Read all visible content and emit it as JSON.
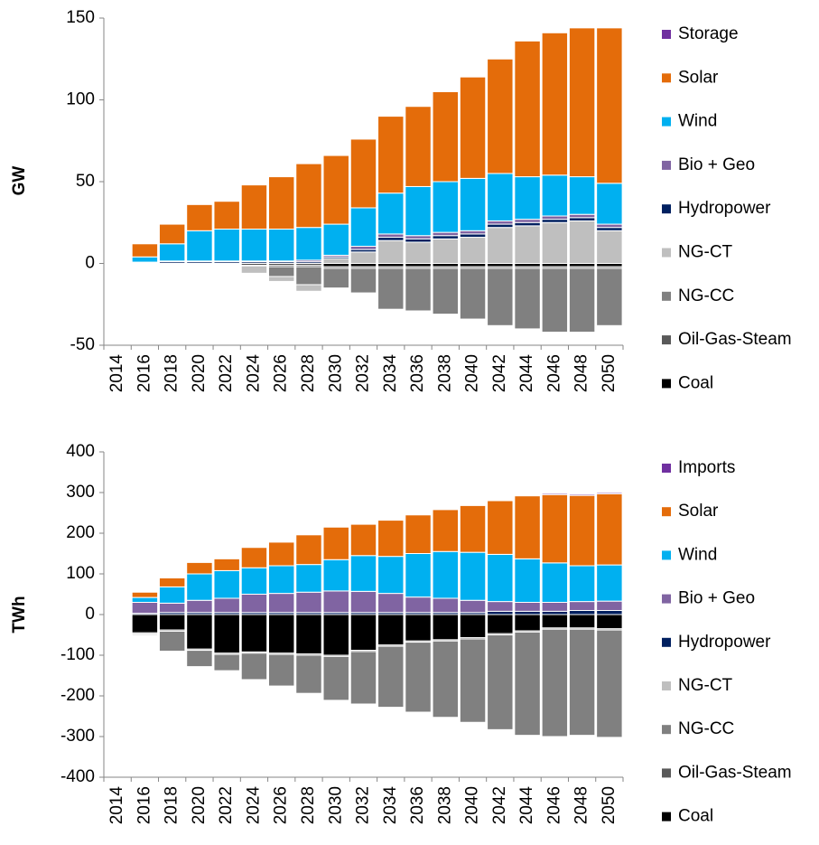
{
  "chart_data": [
    {
      "type": "stacked_bar",
      "y_label": "GW",
      "categories": [
        "2014",
        "2016",
        "2018",
        "2020",
        "2022",
        "2024",
        "2026",
        "2028",
        "2030",
        "2032",
        "2034",
        "2036",
        "2038",
        "2040",
        "2042",
        "2044",
        "2046",
        "2048",
        "2050"
      ],
      "ylim": [
        -50,
        150
      ],
      "yticks": [
        -50,
        0,
        50,
        100,
        150
      ],
      "grid": false,
      "series": [
        {
          "name": "Storage",
          "color": "#7030a0",
          "values": [
            0,
            0,
            0,
            0,
            0,
            0,
            0,
            0,
            0,
            0,
            0,
            0,
            0,
            0,
            0,
            0,
            0,
            0,
            0
          ]
        },
        {
          "name": "Solar",
          "color": "#e46c0a",
          "values": [
            0,
            8,
            12,
            16,
            17,
            27,
            32,
            39,
            42,
            42,
            47,
            49,
            55,
            62,
            70,
            83,
            87,
            91,
            95
          ]
        },
        {
          "name": "Wind",
          "color": "#00b0f0",
          "values": [
            0,
            3.2,
            10.5,
            18.5,
            19.5,
            19.5,
            19.5,
            20,
            19,
            23.5,
            25,
            30,
            31,
            32,
            29,
            26,
            25,
            23,
            25
          ]
        },
        {
          "name": "Bio + Geo",
          "color": "#8064a2",
          "values": [
            0,
            0.3,
            0.5,
            0.5,
            0.5,
            0.5,
            0.5,
            1,
            1,
            2,
            2,
            2,
            2,
            2,
            2,
            2,
            2,
            2,
            2
          ]
        },
        {
          "name": "Hydropower",
          "color": "#002060",
          "values": [
            0,
            0.5,
            1,
            1,
            1,
            1,
            1,
            1,
            1,
            1.5,
            2,
            2,
            2,
            2,
            2,
            2,
            2,
            2,
            2
          ]
        },
        {
          "name": "NG-CT",
          "color": "#bfbfbf",
          "values": [
            0,
            0,
            0,
            0,
            0,
            -4.5,
            -3,
            -4,
            3,
            7,
            14,
            13,
            15,
            16,
            22,
            23,
            25,
            26,
            20
          ]
        },
        {
          "name": "NG-CC",
          "color": "#808080",
          "values": [
            0,
            0,
            0,
            0,
            0,
            0,
            -6,
            -11,
            -12,
            -15,
            -25,
            -26,
            -28,
            -31,
            -35,
            -37,
            -39,
            -39,
            -35
          ]
        },
        {
          "name": "Oil-Gas-Steam",
          "color": "#595959",
          "values": [
            0,
            0,
            0,
            0,
            0,
            -0.5,
            -1,
            -1,
            -1,
            -1,
            -1,
            -1,
            -1,
            -1,
            -1,
            -1,
            -1,
            -1,
            -1
          ]
        },
        {
          "name": "Coal",
          "color": "#000000",
          "values": [
            0,
            0,
            0,
            0,
            0,
            -1,
            -1,
            -1,
            -2,
            -2,
            -2,
            -2,
            -2,
            -2,
            -2,
            -2,
            -2,
            -2,
            -2
          ]
        }
      ]
    },
    {
      "type": "stacked_bar",
      "y_label": "TWh",
      "categories": [
        "2014",
        "2016",
        "2018",
        "2020",
        "2022",
        "2024",
        "2026",
        "2028",
        "2030",
        "2032",
        "2034",
        "2036",
        "2038",
        "2040",
        "2042",
        "2044",
        "2046",
        "2048",
        "2050"
      ],
      "ylim": [
        -400,
        400
      ],
      "yticks": [
        -400,
        -300,
        -200,
        -100,
        0,
        100,
        200,
        300,
        400
      ],
      "grid": false,
      "series": [
        {
          "name": "Imports",
          "color": "#7030a0",
          "values": [
            0,
            0,
            0,
            0,
            0,
            0,
            0,
            0,
            0,
            0,
            0,
            0,
            0,
            0,
            0,
            2,
            3,
            3,
            3
          ]
        },
        {
          "name": "Solar",
          "color": "#e46c0a",
          "values": [
            0,
            13,
            22,
            28,
            29,
            50,
            58,
            73,
            80,
            77,
            89,
            95,
            103,
            115,
            132,
            155,
            168,
            173,
            175
          ]
        },
        {
          "name": "Wind",
          "color": "#00b0f0",
          "values": [
            0,
            12,
            40,
            65,
            68,
            65,
            68,
            68,
            77,
            88,
            91,
            107,
            115,
            118,
            116,
            107,
            97,
            88,
            89
          ]
        },
        {
          "name": "Bio + Geo",
          "color": "#8064a2",
          "values": [
            0,
            27,
            23,
            30,
            35,
            45,
            47,
            50,
            53,
            52,
            47,
            38,
            35,
            30,
            24,
            22,
            22,
            22,
            23
          ]
        },
        {
          "name": "Hydropower",
          "color": "#002060",
          "values": [
            0,
            3,
            5,
            5,
            5,
            5,
            5,
            5,
            5,
            5,
            5,
            5,
            5,
            5,
            8,
            8,
            8,
            10,
            10
          ]
        },
        {
          "name": "NG-CT",
          "color": "#bfbfbf",
          "values": [
            0,
            -3,
            0,
            0,
            0,
            -2,
            -2,
            -2,
            -2,
            0,
            0,
            0,
            -2,
            0,
            0,
            0,
            0,
            0,
            0
          ]
        },
        {
          "name": "NG-CC",
          "color": "#808080",
          "values": [
            0,
            0,
            -49,
            -40,
            -40,
            -65,
            -78,
            -94,
            -108,
            -129,
            -150,
            -172,
            -188,
            -205,
            -233,
            -254,
            -264,
            -261,
            -264
          ]
        },
        {
          "name": "Oil-Gas-Steam",
          "color": "#595959",
          "values": [
            0,
            -3,
            -3,
            -3,
            -3,
            -3,
            -3,
            -3,
            -3,
            -3,
            -3,
            -3,
            -3,
            -3,
            -3,
            -3,
            -3,
            -3,
            -3
          ]
        },
        {
          "name": "Coal",
          "color": "#000000",
          "values": [
            0,
            -45,
            -38,
            -85,
            -95,
            -92,
            -95,
            -97,
            -100,
            -88,
            -75,
            -65,
            -62,
            -57,
            -47,
            -40,
            -33,
            -33,
            -35
          ]
        }
      ]
    }
  ]
}
